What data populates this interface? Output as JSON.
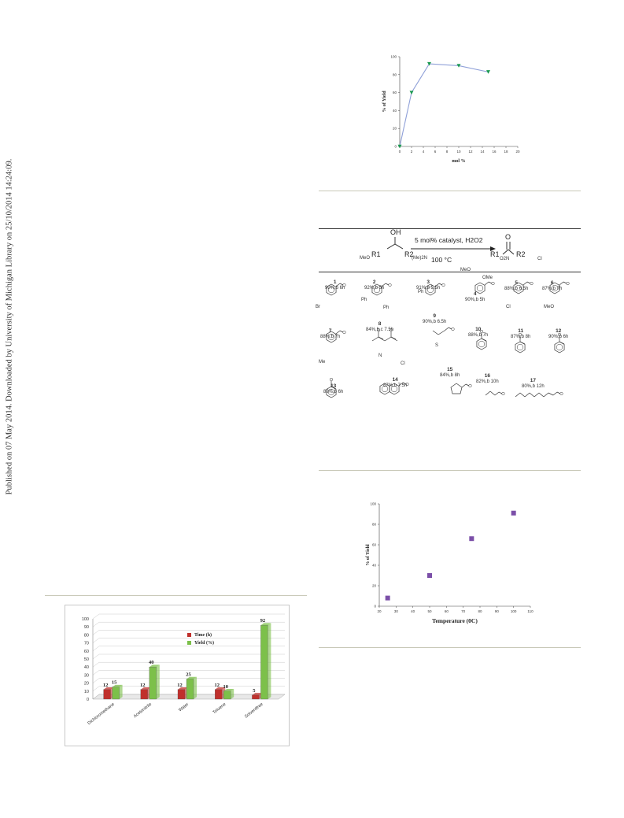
{
  "sidebar_text": "Published on 07 May 2014. Downloaded by University of Michigan Library on 25/10/2014 14:24:09.",
  "fig_catalyst": {
    "chart_data": {
      "type": "line",
      "xlabel": "mol %",
      "ylabel": "% of Yield",
      "xlim": [
        0,
        20
      ],
      "ylim": [
        0,
        100
      ],
      "x_ticks": [
        "0",
        "2",
        "4",
        "6",
        "8",
        "10",
        "12",
        "14",
        "16",
        "18",
        "20"
      ],
      "y_ticks": [
        "0",
        "20",
        "40",
        "60",
        "80",
        "100"
      ],
      "x": [
        0,
        2,
        5,
        10,
        15
      ],
      "y": [
        0,
        60,
        92,
        90,
        83
      ],
      "line_color": "#8fa0d8",
      "marker_color": "#1a9a50"
    }
  },
  "scheme": {
    "reagents": "5 mol% catalyst, H2O2",
    "conditions": "100 °C",
    "substrate_r1": "R1",
    "substrate_r2": "R2",
    "substrate_oh": "OH",
    "product_r1": "R1",
    "product_r2": "R2",
    "product_o": "O",
    "compounds": [
      {
        "num": "1",
        "yield": "90%,b 6h"
      },
      {
        "num": "2",
        "yield": "92%,b 5h",
        "sub": "MeO"
      },
      {
        "num": "3",
        "yield": "91%,b 5.5h",
        "sub": "(Me)2N"
      },
      {
        "num": "4",
        "yield": "90%,b 5h",
        "sub": "MeO",
        "sub2": "OMe"
      },
      {
        "num": "5",
        "yield": "88%,b 6.5h",
        "sub": "O2N"
      },
      {
        "num": "6",
        "yield": "87%,b 7h",
        "sub": "Cl"
      },
      {
        "num": "7",
        "yield": "88%,b 7h",
        "sub": "Br"
      },
      {
        "num": "8",
        "yield": "84%,b,c 7.5h",
        "sub": "Ph",
        "sub2": "Ph"
      },
      {
        "num": "9",
        "yield": "90%,b 6.5h",
        "sub": "Ph"
      },
      {
        "num": "10",
        "yield": "88%,b 7h"
      },
      {
        "num": "11",
        "yield": "87%,b 8h",
        "sub": "Cl"
      },
      {
        "num": "12",
        "yield": "90%,b 6h",
        "sub": "MeO"
      },
      {
        "num": "13",
        "yield": "89%,b 6h",
        "sub": "Me"
      },
      {
        "num": "14",
        "yield": "87%,b 7.5h",
        "sub": "N",
        "sub2": "Cl"
      },
      {
        "num": "15",
        "yield": "84%,b 8h",
        "sub": "S"
      },
      {
        "num": "16",
        "yield": "82%,b 10h"
      },
      {
        "num": "17",
        "yield": "80%,b 12h"
      }
    ]
  },
  "fig_temperature": {
    "chart_data": {
      "type": "scatter",
      "xlabel": "Temperature (0C)",
      "ylabel": "% of Yield",
      "xlim": [
        20,
        110
      ],
      "ylim": [
        0,
        100
      ],
      "x_ticks": [
        "20",
        "30",
        "40",
        "50",
        "60",
        "70",
        "80",
        "90",
        "100",
        "110"
      ],
      "y_ticks": [
        "0",
        "20",
        "40",
        "60",
        "80",
        "100"
      ],
      "x": [
        25,
        50,
        75,
        100
      ],
      "y": [
        8,
        30,
        66,
        91
      ],
      "marker_color": "#7b4fa8"
    }
  },
  "fig_solvent": {
    "chart_data": {
      "type": "bar",
      "categories": [
        "Dichloromethane",
        "Acetonitrile",
        "Water",
        "Toluene",
        "Solventfree"
      ],
      "series": [
        {
          "name": "Time (h)",
          "values": [
            12,
            12,
            12,
            12,
            5
          ],
          "color": "#c0302c"
        },
        {
          "name": "Yield (%)",
          "values": [
            15,
            40,
            25,
            10,
            92
          ],
          "color": "#7cc04a"
        }
      ],
      "ylim": [
        0,
        100
      ],
      "y_ticks": [
        "0",
        "10",
        "20",
        "30",
        "40",
        "50",
        "60",
        "70",
        "80",
        "90",
        "100"
      ],
      "data_labels": [
        "12",
        "15",
        "12",
        "40",
        "12",
        "25",
        "12",
        "10",
        "5",
        "92"
      ],
      "legend_position": "top-center"
    }
  }
}
